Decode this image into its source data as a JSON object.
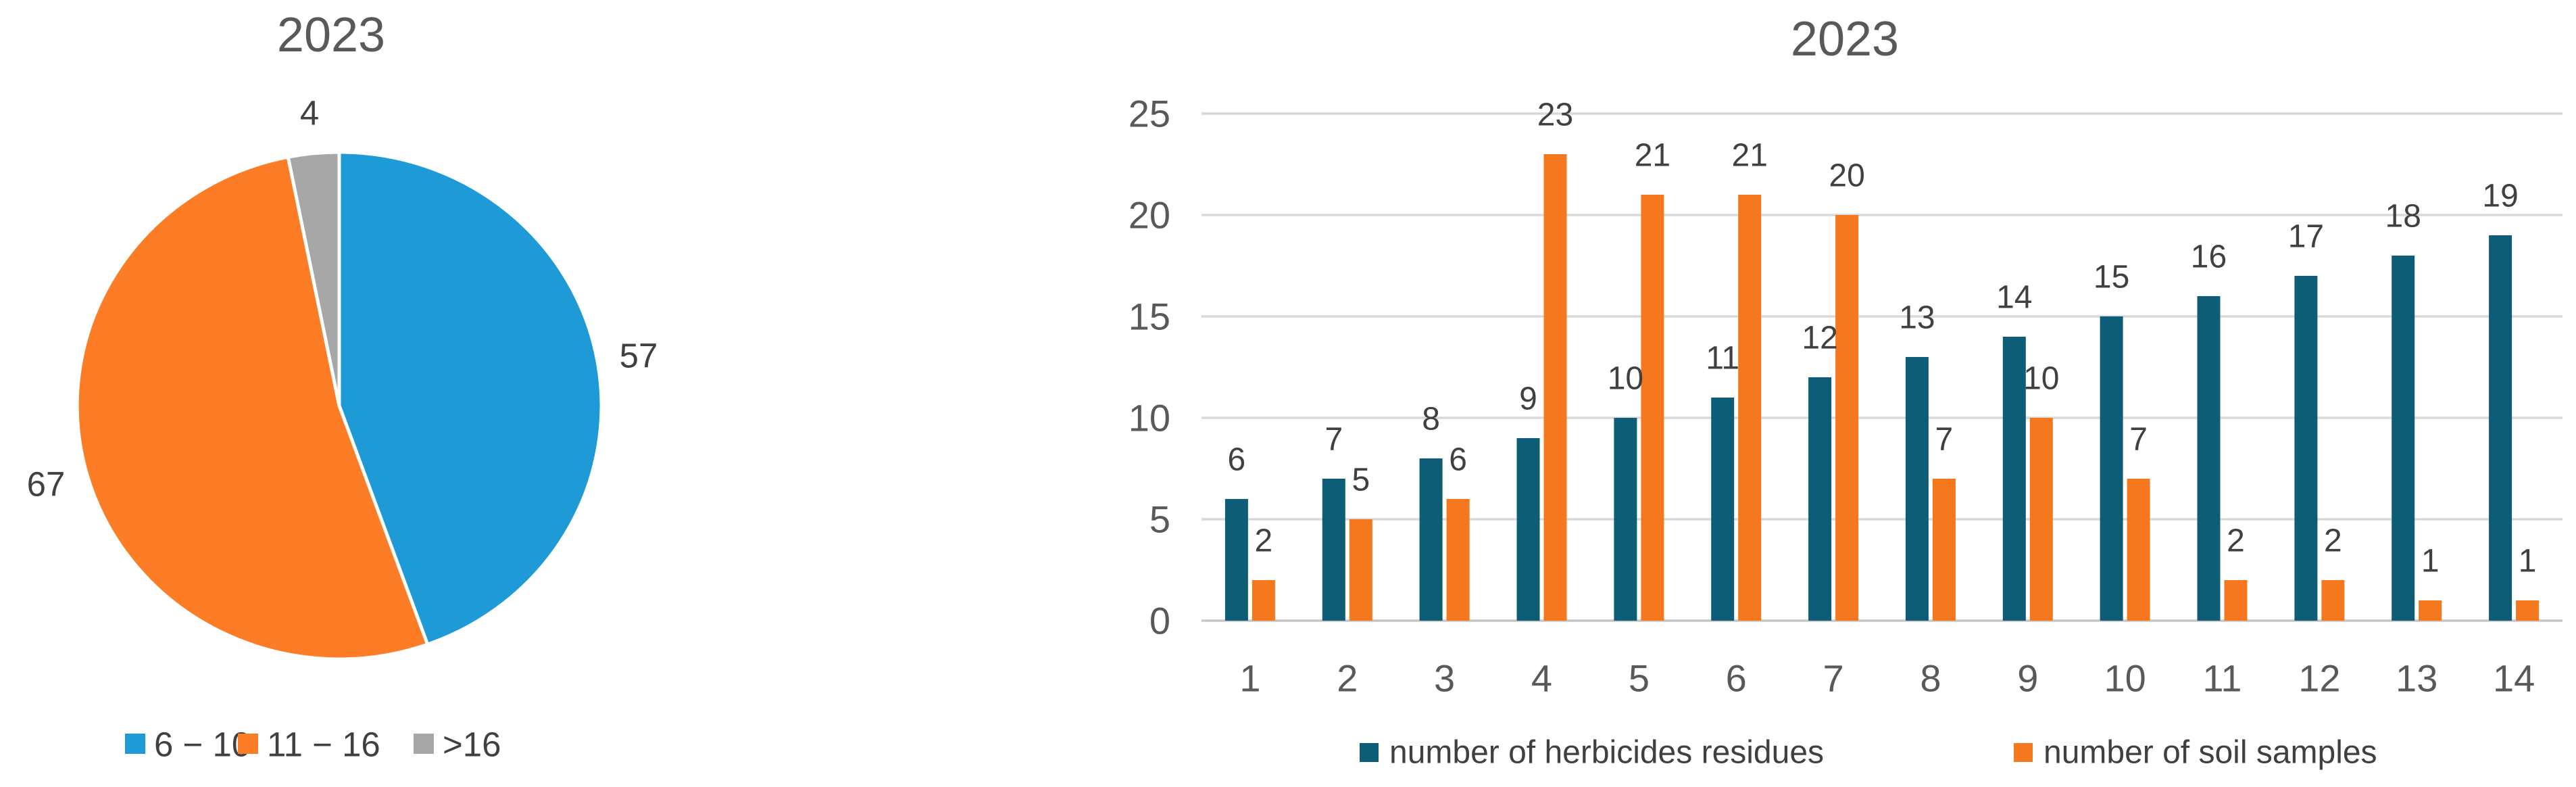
{
  "figure": {
    "background": "#FFFFFF"
  },
  "chart_data": [
    {
      "type": "pie",
      "title": "2023",
      "slices": [
        {
          "label": "6 − 10",
          "value": 57,
          "color": "#1E9BD7"
        },
        {
          "label": "11 − 16",
          "value": 67,
          "color": "#FD7D26"
        },
        {
          "label": ">16",
          "value": 4,
          "color": "#A7A7A7"
        }
      ],
      "start_angle_deg": 0,
      "legend_position": "bottom",
      "title_color": "#595959",
      "label_color": "#404040"
    },
    {
      "type": "bar",
      "title": "2023",
      "categories": [
        "1",
        "2",
        "3",
        "4",
        "5",
        "6",
        "7",
        "8",
        "9",
        "10",
        "11",
        "12",
        "13",
        "14"
      ],
      "series": [
        {
          "name": "number of herbicides residues",
          "color": "#0E5D76",
          "values": [
            6,
            7,
            8,
            9,
            10,
            11,
            12,
            13,
            14,
            15,
            16,
            17,
            18,
            19
          ]
        },
        {
          "name": "number of soil samples",
          "color": "#F5771E",
          "values": [
            2,
            5,
            6,
            23,
            21,
            21,
            20,
            7,
            10,
            7,
            2,
            2,
            1,
            1
          ]
        }
      ],
      "y_ticks": [
        0,
        5,
        10,
        15,
        20,
        25
      ],
      "ylim": [
        0,
        25
      ],
      "grid": true,
      "legend_position": "bottom",
      "title_color": "#595959",
      "axis_tick_color": "#595959",
      "data_label_color": "#404040",
      "gridline_color": "#D9D9D9"
    }
  ]
}
